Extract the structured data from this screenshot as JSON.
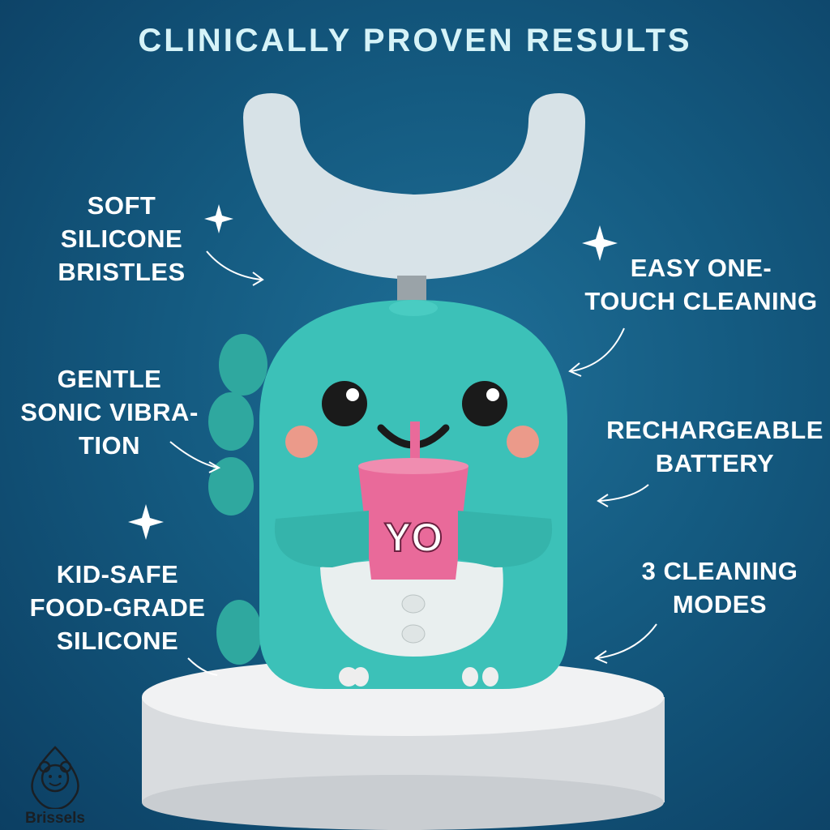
{
  "title": "CLINICALLY PROVEN RESULTS",
  "features_left": [
    {
      "lines": [
        "SOFT",
        "SILICONE",
        "BRISTLES"
      ]
    },
    {
      "lines": [
        "GENTLE",
        "SONIC VIBRA-",
        "TION"
      ]
    },
    {
      "lines": [
        "KID-SAFE",
        "FOOD-GRADE",
        "SILICONE"
      ]
    }
  ],
  "features_right": [
    {
      "lines": [
        "EASY ONE-",
        "TOUCH CLEANING"
      ]
    },
    {
      "lines": [
        "RECHARGEABLE",
        "BATTERY"
      ]
    },
    {
      "lines": [
        "3 CLEANING",
        "MODES"
      ]
    }
  ],
  "cup_text": "YO",
  "brand": "Brissels",
  "colors": {
    "background": "#145a80",
    "body": "#3cc1b8",
    "cup": "#e96a9a",
    "title": "#d6f3f8"
  }
}
